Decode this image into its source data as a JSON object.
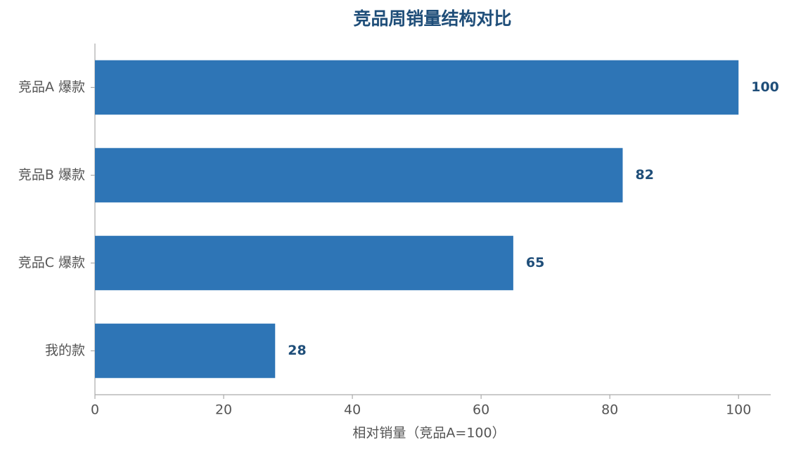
{
  "chart_data": {
    "type": "bar",
    "orientation": "horizontal",
    "title": "竞品周销量结构对比",
    "categories": [
      "竞品A 爆款",
      "竞品B 爆款",
      "竞品C 爆款",
      "我的款"
    ],
    "values": [
      100,
      82,
      65,
      28
    ],
    "color": "#2e75b6",
    "xlabel": "相对销量（竞品A=100）",
    "xlim": [
      0,
      105
    ],
    "xticks": [
      0,
      20,
      40,
      60,
      80,
      100
    ],
    "grid": false
  }
}
